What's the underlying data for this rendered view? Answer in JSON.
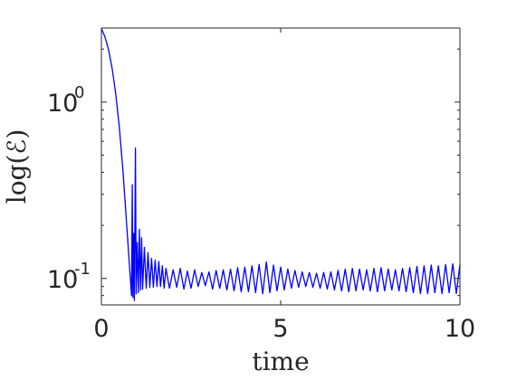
{
  "chart_data": {
    "type": "line",
    "xlabel": "time",
    "ylabel": "log(ℰ)",
    "xlim": [
      0,
      10
    ],
    "ylim_log10": [
      -1.15,
      0.42
    ],
    "y_scale": "log",
    "grid": false,
    "x_ticks": [
      {
        "value": 0,
        "label": "0"
      },
      {
        "value": 5,
        "label": "5"
      },
      {
        "value": 10,
        "label": "10"
      }
    ],
    "y_ticks": [
      {
        "log10": 0,
        "base": "10",
        "exp": "0"
      },
      {
        "log10": -1,
        "base": "10",
        "exp": "-1"
      }
    ],
    "series": [
      {
        "color": "#0000ff",
        "points": [
          [
            0.0,
            2.61
          ],
          [
            0.1,
            2.34
          ],
          [
            0.2,
            1.98
          ],
          [
            0.3,
            1.55
          ],
          [
            0.4,
            1.12
          ],
          [
            0.5,
            0.72
          ],
          [
            0.6,
            0.41
          ],
          [
            0.7,
            0.21
          ],
          [
            0.78,
            0.12
          ],
          [
            0.84,
            0.08
          ],
          [
            0.86,
            0.34
          ],
          [
            0.88,
            0.078
          ],
          [
            0.9,
            0.18
          ],
          [
            0.92,
            0.075
          ],
          [
            0.95,
            0.55
          ],
          [
            0.97,
            0.082
          ],
          [
            1.0,
            0.16
          ],
          [
            1.03,
            0.083
          ],
          [
            1.06,
            0.19
          ],
          [
            1.09,
            0.086
          ],
          [
            1.12,
            0.17
          ],
          [
            1.15,
            0.087
          ],
          [
            1.2,
            0.15
          ],
          [
            1.25,
            0.088
          ],
          [
            1.3,
            0.14
          ],
          [
            1.35,
            0.089
          ],
          [
            1.4,
            0.13
          ],
          [
            1.45,
            0.089
          ],
          [
            1.5,
            0.127
          ],
          [
            1.55,
            0.09
          ],
          [
            1.6,
            0.125
          ],
          [
            1.65,
            0.09
          ],
          [
            1.7,
            0.118
          ],
          [
            1.75,
            0.088
          ],
          [
            1.8,
            0.114
          ],
          [
            1.9,
            0.088
          ],
          [
            2.0,
            0.112
          ],
          [
            2.1,
            0.089
          ],
          [
            2.2,
            0.114
          ],
          [
            2.3,
            0.087
          ],
          [
            2.4,
            0.11
          ],
          [
            2.5,
            0.088
          ],
          [
            2.6,
            0.112
          ],
          [
            2.7,
            0.09
          ],
          [
            2.8,
            0.108
          ],
          [
            2.9,
            0.091
          ],
          [
            3.0,
            0.109
          ],
          [
            3.1,
            0.087
          ],
          [
            3.2,
            0.111
          ],
          [
            3.3,
            0.088
          ],
          [
            3.4,
            0.112
          ],
          [
            3.5,
            0.086
          ],
          [
            3.6,
            0.113
          ],
          [
            3.7,
            0.085
          ],
          [
            3.8,
            0.115
          ],
          [
            3.9,
            0.084
          ],
          [
            4.0,
            0.116
          ],
          [
            4.1,
            0.084
          ],
          [
            4.2,
            0.118
          ],
          [
            4.3,
            0.083
          ],
          [
            4.4,
            0.12
          ],
          [
            4.5,
            0.082
          ],
          [
            4.6,
            0.124
          ],
          [
            4.7,
            0.083
          ],
          [
            4.8,
            0.119
          ],
          [
            4.9,
            0.085
          ],
          [
            5.0,
            0.116
          ],
          [
            5.1,
            0.086
          ],
          [
            5.2,
            0.113
          ],
          [
            5.3,
            0.088
          ],
          [
            5.4,
            0.111
          ],
          [
            5.5,
            0.089
          ],
          [
            5.6,
            0.109
          ],
          [
            5.7,
            0.09
          ],
          [
            5.8,
            0.108
          ],
          [
            5.9,
            0.089
          ],
          [
            6.0,
            0.107
          ],
          [
            6.1,
            0.088
          ],
          [
            6.2,
            0.108
          ],
          [
            6.3,
            0.087
          ],
          [
            6.4,
            0.109
          ],
          [
            6.5,
            0.086
          ],
          [
            6.6,
            0.111
          ],
          [
            6.7,
            0.085
          ],
          [
            6.8,
            0.113
          ],
          [
            6.9,
            0.084
          ],
          [
            7.0,
            0.114
          ],
          [
            7.1,
            0.085
          ],
          [
            7.2,
            0.113
          ],
          [
            7.3,
            0.086
          ],
          [
            7.4,
            0.112
          ],
          [
            7.5,
            0.085
          ],
          [
            7.6,
            0.114
          ],
          [
            7.7,
            0.084
          ],
          [
            7.8,
            0.115
          ],
          [
            7.9,
            0.085
          ],
          [
            8.0,
            0.113
          ],
          [
            8.1,
            0.086
          ],
          [
            8.2,
            0.112
          ],
          [
            8.3,
            0.085
          ],
          [
            8.4,
            0.114
          ],
          [
            8.5,
            0.084
          ],
          [
            8.6,
            0.115
          ],
          [
            8.7,
            0.083
          ],
          [
            8.8,
            0.117
          ],
          [
            8.9,
            0.082
          ],
          [
            9.0,
            0.118
          ],
          [
            9.1,
            0.082
          ],
          [
            9.2,
            0.119
          ],
          [
            9.3,
            0.083
          ],
          [
            9.4,
            0.118
          ],
          [
            9.5,
            0.082
          ],
          [
            9.6,
            0.12
          ],
          [
            9.7,
            0.083
          ],
          [
            9.8,
            0.121
          ],
          [
            9.9,
            0.082
          ],
          [
            10.0,
            0.12
          ]
        ]
      }
    ]
  }
}
